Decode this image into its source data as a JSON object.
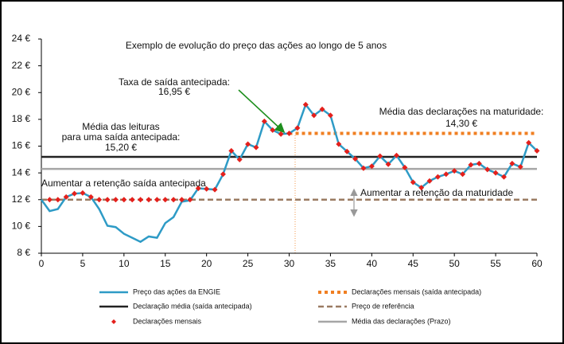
{
  "chart_data": {
    "type": "line",
    "title": "Exemplo de evolução do preço das ações ao longo de 5 anos",
    "annotations": [
      "Taxa de saída antecipada:",
      "16,95 €",
      "Média das declarações na maturidade:",
      "14,30 €",
      "Média das leituras",
      "para uma saída antecipada:",
      "15,20 €",
      "Aumentar a retenção saída antecipada",
      "Aumentar a retenção da maturidade"
    ],
    "xlim": [
      0,
      60
    ],
    "xticks": [
      0,
      5,
      10,
      15,
      20,
      25,
      30,
      35,
      40,
      45,
      50,
      55,
      60
    ],
    "ylim": [
      8,
      24
    ],
    "yticks": [
      {
        "value": 8,
        "label": "8 €"
      },
      {
        "value": 10,
        "label": "10 €"
      },
      {
        "value": 12,
        "label": "12 €"
      },
      {
        "value": 14,
        "label": "14 €"
      },
      {
        "value": 16,
        "label": "16 €"
      },
      {
        "value": 18,
        "label": "18 €"
      },
      {
        "value": 20,
        "label": "20 €"
      },
      {
        "value": 22,
        "label": "22 €"
      },
      {
        "value": 24,
        "label": "24 €"
      }
    ],
    "series": [
      {
        "name": "Preço das ações da ENGIE",
        "color": "#2e9bc6",
        "style": "line",
        "x": [
          0,
          1,
          2,
          3,
          4,
          5,
          6,
          7,
          8,
          9,
          10,
          11,
          12,
          13,
          14,
          15,
          16,
          17,
          18,
          19,
          20,
          21,
          22,
          23,
          24,
          25,
          26,
          27,
          28,
          29,
          30,
          31,
          32,
          33,
          34,
          35,
          36,
          37,
          38,
          39,
          40,
          41,
          42,
          43,
          44,
          45,
          46,
          47,
          48,
          49,
          50,
          51,
          52,
          53,
          54,
          55,
          56,
          57,
          58,
          59,
          60
        ],
        "values": [
          12.0,
          11.15,
          11.3,
          12.2,
          12.45,
          12.5,
          12.2,
          11.3,
          10.05,
          9.95,
          9.45,
          9.15,
          8.85,
          9.25,
          9.15,
          10.25,
          10.7,
          11.85,
          11.95,
          12.85,
          12.8,
          12.75,
          13.9,
          15.65,
          15.0,
          16.15,
          15.9,
          17.85,
          17.2,
          16.9,
          16.95,
          17.35,
          19.1,
          18.3,
          18.75,
          18.3,
          16.15,
          15.6,
          15.05,
          14.35,
          14.5,
          15.25,
          14.65,
          15.3,
          14.4,
          13.3,
          12.9,
          13.4,
          13.7,
          13.9,
          14.15,
          13.9,
          14.6,
          14.7,
          14.25,
          14.0,
          13.7,
          14.7,
          14.45,
          16.25,
          15.65
        ]
      },
      {
        "name": "Declarações mensais (saída antecipada)",
        "color": "#f07f22",
        "style": "dotted",
        "x": [
          30,
          60
        ],
        "values": [
          16.95,
          16.95
        ]
      },
      {
        "name": "Declaração média (saída antecipada)",
        "color": "#222222",
        "style": "solid",
        "x": [
          0,
          60
        ],
        "values": [
          15.2,
          15.2
        ]
      },
      {
        "name": "Preço de referência",
        "color": "#9a7b62",
        "style": "dashed",
        "x": [
          0,
          60
        ],
        "values": [
          12,
          12
        ]
      },
      {
        "name": "Declarações mensais",
        "color": "#e4201c",
        "style": "markers",
        "x": [
          1,
          2,
          3,
          4,
          5,
          6,
          7,
          8,
          9,
          10,
          11,
          12,
          13,
          14,
          15,
          16,
          17,
          18,
          19,
          20,
          21,
          22,
          23,
          24,
          25,
          26,
          27,
          28,
          29,
          30,
          31,
          32,
          33,
          34,
          35,
          36,
          37,
          38,
          39,
          40,
          41,
          42,
          43,
          44,
          45,
          46,
          47,
          48,
          49,
          50,
          51,
          52,
          53,
          54,
          55,
          56,
          57,
          58,
          59,
          60
        ],
        "values": [
          12,
          12,
          12.2,
          12.45,
          12.5,
          12.2,
          12,
          12,
          12,
          12,
          12,
          12,
          12,
          12,
          12,
          12,
          12,
          12,
          12.85,
          12.8,
          12.75,
          13.9,
          15.65,
          15.0,
          16.15,
          15.9,
          17.85,
          17.2,
          16.9,
          16.95,
          17.35,
          19.1,
          18.3,
          18.75,
          18.3,
          16.15,
          15.6,
          15.05,
          14.35,
          14.5,
          15.25,
          14.65,
          15.3,
          14.4,
          13.3,
          12.9,
          13.4,
          13.7,
          13.9,
          14.15,
          13.9,
          14.6,
          14.7,
          14.25,
          14.0,
          13.7,
          14.7,
          14.45,
          16.25,
          15.65
        ]
      },
      {
        "name": "Média das declarações (Prazo)",
        "color": "#a6a6a6",
        "style": "solid",
        "x": [
          0,
          60
        ],
        "values": [
          14.3,
          14.3
        ]
      }
    ]
  }
}
